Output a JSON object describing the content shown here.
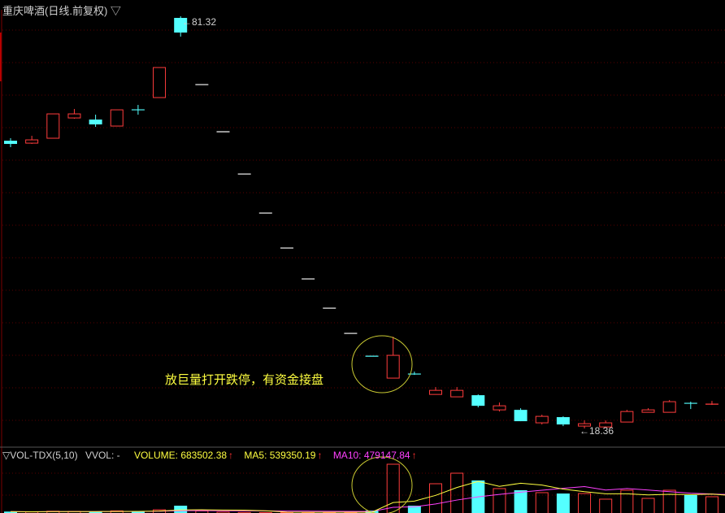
{
  "header": {
    "title": "重庆啤酒(日线.前复权) ▽"
  },
  "volume_legend": {
    "name": "▽VOL-TDX(5,10)",
    "vvol": "VVOL: -",
    "volume": "VOLUME: 683502.38",
    "ma5": "MA5: 539350.19",
    "ma10": "MA10: 479147.84",
    "arrow": "↑"
  },
  "annotation": "放巨量打开跌停，有资金接盘",
  "colors": {
    "up": "#ff3c3c",
    "down": "#54ffff",
    "flat": "#ffffff",
    "ma5": "#ffff40",
    "ma10": "#ff40ff",
    "annotation": "#ffff40",
    "grid": "#5a0000"
  },
  "chart_data": {
    "type": "candlestick",
    "high_label": "81.32",
    "low_label": "18.36",
    "candles": [
      {
        "o": 62.31,
        "c": 61.82,
        "h": 62.69,
        "l": 61.32,
        "v": 20000
      },
      {
        "o": 61.94,
        "c": 62.44,
        "h": 63.06,
        "l": 61.82,
        "v": 15000
      },
      {
        "o": 62.69,
        "c": 66.41,
        "h": 66.41,
        "l": 62.69,
        "v": 25000
      },
      {
        "o": 65.79,
        "c": 66.41,
        "h": 67.16,
        "l": 65.67,
        "v": 22000
      },
      {
        "o": 65.54,
        "c": 64.8,
        "h": 66.29,
        "l": 64.42,
        "v": 18000
      },
      {
        "o": 64.55,
        "c": 67.03,
        "h": 67.03,
        "l": 64.55,
        "v": 30000
      },
      {
        "o": 67.03,
        "c": 67.03,
        "h": 67.78,
        "l": 66.29,
        "v": 20000
      },
      {
        "o": 68.9,
        "c": 73.49,
        "h": 73.49,
        "l": 68.9,
        "v": 45000
      },
      {
        "o": 81.07,
        "c": 78.83,
        "h": 81.32,
        "l": 78.21,
        "v": 102500
      },
      {
        "o": 70.88,
        "c": 70.88,
        "h": 70.88,
        "l": 70.88,
        "v": 30000
      },
      {
        "o": 63.68,
        "c": 63.68,
        "h": 63.68,
        "l": 63.68,
        "v": 12000
      },
      {
        "o": 57.22,
        "c": 57.22,
        "h": 57.22,
        "l": 57.22,
        "v": 8000
      },
      {
        "o": 51.26,
        "c": 51.26,
        "h": 51.26,
        "l": 51.26,
        "v": 6000
      },
      {
        "o": 45.92,
        "c": 45.92,
        "h": 45.92,
        "l": 45.92,
        "v": 6000
      },
      {
        "o": 41.2,
        "c": 41.2,
        "h": 41.2,
        "l": 41.2,
        "v": 5000
      },
      {
        "o": 36.73,
        "c": 36.73,
        "h": 36.73,
        "l": 36.73,
        "v": 5000
      },
      {
        "o": 32.88,
        "c": 32.88,
        "h": 32.88,
        "l": 32.88,
        "v": 6000
      },
      {
        "o": 29.4,
        "c": 29.4,
        "h": 29.4,
        "l": 29.4,
        "v": 34000
      },
      {
        "o": 26.05,
        "c": 29.53,
        "h": 32.38,
        "l": 26.05,
        "v": 683502
      },
      {
        "o": 26.67,
        "c": 26.67,
        "h": 27.04,
        "l": 26.54,
        "v": 102500
      },
      {
        "o": 23.56,
        "c": 24.18,
        "h": 24.68,
        "l": 23.56,
        "v": 410000
      },
      {
        "o": 23.19,
        "c": 24.18,
        "h": 24.68,
        "l": 23.19,
        "v": 558000
      },
      {
        "o": 23.44,
        "c": 21.82,
        "h": 23.56,
        "l": 21.58,
        "v": 456000
      },
      {
        "o": 21.2,
        "c": 21.82,
        "h": 22.32,
        "l": 20.95,
        "v": 342000
      },
      {
        "o": 21.2,
        "c": 19.47,
        "h": 21.45,
        "l": 19.47,
        "v": 319000
      },
      {
        "o": 19.22,
        "c": 20.21,
        "h": 20.46,
        "l": 18.97,
        "v": 285000
      },
      {
        "o": 20.09,
        "c": 18.97,
        "h": 20.21,
        "l": 18.72,
        "v": 273000
      },
      {
        "o": 18.72,
        "c": 19.09,
        "h": 19.59,
        "l": 18.36,
        "v": 273000
      },
      {
        "o": 18.59,
        "c": 19.22,
        "h": 19.59,
        "l": 18.59,
        "v": 194000
      },
      {
        "o": 19.34,
        "c": 20.95,
        "h": 21.2,
        "l": 19.34,
        "v": 319000
      },
      {
        "o": 20.83,
        "c": 21.2,
        "h": 21.45,
        "l": 20.83,
        "v": 205000
      },
      {
        "o": 20.83,
        "c": 22.45,
        "h": 22.69,
        "l": 20.83,
        "v": 319000
      },
      {
        "o": 22.2,
        "c": 22.2,
        "h": 22.45,
        "l": 21.33,
        "v": 251000
      },
      {
        "o": 21.95,
        "c": 22.07,
        "h": 22.57,
        "l": 21.95,
        "v": 228000
      },
      {
        "o": 21.82,
        "c": 21.45,
        "h": 21.82,
        "l": 21.45,
        "v": 216000
      }
    ]
  }
}
